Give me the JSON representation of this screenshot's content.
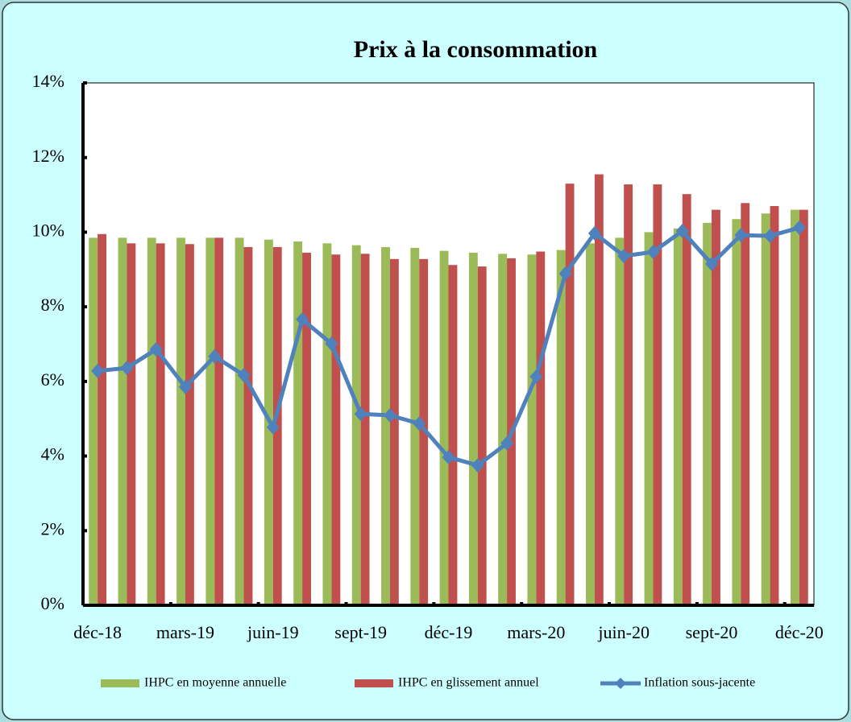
{
  "chart_data": {
    "type": "bar_line",
    "title": "Prix à la consommation",
    "categories": [
      "déc-18",
      null,
      null,
      "mars-19",
      null,
      null,
      "juin-19",
      null,
      null,
      "sept-19",
      null,
      null,
      "déc-19",
      null,
      null,
      "mars-20",
      null,
      null,
      "juin-20",
      null,
      null,
      "sept-20",
      null,
      null,
      "déc-20"
    ],
    "series": [
      {
        "name": "IHPC en moyenne annuelle",
        "type": "bar",
        "color": "#9bbb59",
        "values": [
          9.85,
          9.85,
          9.85,
          9.85,
          9.85,
          9.85,
          9.8,
          9.75,
          9.7,
          9.65,
          9.6,
          9.58,
          9.5,
          9.45,
          9.42,
          9.4,
          9.52,
          9.7,
          9.85,
          10.0,
          10.1,
          10.25,
          10.35,
          10.5,
          10.6
        ]
      },
      {
        "name": "IHPC en glissement annuel",
        "type": "bar",
        "color": "#c0504d",
        "values": [
          9.95,
          9.7,
          9.7,
          9.68,
          9.85,
          9.6,
          9.6,
          9.45,
          9.4,
          9.42,
          9.28,
          9.28,
          9.12,
          9.08,
          9.3,
          9.48,
          11.3,
          11.55,
          11.28,
          11.28,
          11.02,
          10.6,
          10.78,
          10.7,
          10.6
        ]
      },
      {
        "name": "Inflation sous-jacente",
        "type": "line",
        "color": "#4f81bd",
        "values": [
          6.28,
          6.36,
          6.86,
          5.85,
          6.67,
          6.17,
          4.77,
          7.66,
          7.01,
          5.13,
          5.09,
          4.87,
          3.97,
          3.75,
          4.34,
          6.13,
          8.89,
          9.97,
          9.36,
          9.47,
          10.03,
          9.15,
          9.92,
          9.9,
          10.12
        ]
      }
    ],
    "ylim": [
      0,
      14
    ],
    "yticks": [
      {
        "value": 0,
        "label": "0%"
      },
      {
        "value": 2,
        "label": "2%"
      },
      {
        "value": 4,
        "label": "4%"
      },
      {
        "value": 6,
        "label": "6%"
      },
      {
        "value": 8,
        "label": "8%"
      },
      {
        "value": 10,
        "label": "10%"
      },
      {
        "value": 12,
        "label": "12%"
      },
      {
        "value": 14,
        "label": "14%"
      }
    ],
    "legend": "bottom"
  }
}
